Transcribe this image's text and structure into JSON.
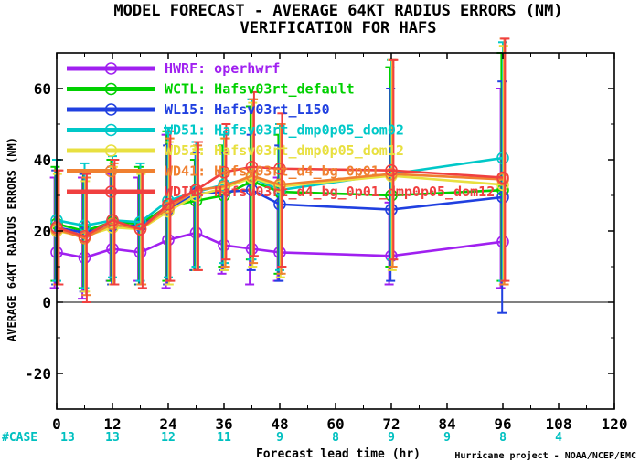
{
  "title": "MODEL FORECAST - AVERAGE 64KT RADIUS ERRORS (NM)",
  "subtitle": "VERIFICATION FOR HAFS",
  "credit": "Hurricane project - NOAA/NCEP/EMC",
  "cases_label": "#CASE",
  "chart_data": {
    "type": "line",
    "title": "MODEL FORECAST - AVERAGE 64KT RADIUS ERRORS (NM)",
    "subtitle": "VERIFICATION FOR HAFS",
    "xlabel": "Forecast lead time (hr)",
    "ylabel": "AVERAGE 64KT RADIUS ERRORS (NM)",
    "xlim": [
      0,
      120
    ],
    "ylim": [
      -30,
      70
    ],
    "xticks": [
      0,
      12,
      24,
      36,
      48,
      60,
      72,
      84,
      96,
      108,
      120
    ],
    "yticks": [
      -20,
      0,
      20,
      40,
      60
    ],
    "grid": false,
    "legend_position": "top-left",
    "x": [
      0,
      6,
      12,
      18,
      24,
      30,
      36,
      42,
      48,
      72,
      96
    ],
    "cases": [
      {
        "x": 0,
        "n": "13"
      },
      {
        "x": 12,
        "n": "13"
      },
      {
        "x": 24,
        "n": "12"
      },
      {
        "x": 36,
        "n": "11"
      },
      {
        "x": 48,
        "n": "9"
      },
      {
        "x": 60,
        "n": "8"
      },
      {
        "x": 72,
        "n": "9"
      },
      {
        "x": 84,
        "n": "9"
      },
      {
        "x": 96,
        "n": "8"
      },
      {
        "x": 108,
        "n": "4"
      }
    ],
    "series": [
      {
        "name": "HWRF: operhwrf",
        "color": "#a020f0",
        "values": [
          14,
          12.5,
          15,
          14,
          17.5,
          19.5,
          16,
          15,
          14,
          13,
          17
        ],
        "err_low": [
          4,
          1,
          6,
          6,
          4,
          9,
          8,
          5,
          6,
          5,
          4
        ],
        "err_high": [
          35,
          35,
          36,
          35,
          47,
          31,
          32,
          33,
          35,
          28,
          60
        ]
      },
      {
        "name": "WCTL: Hafsv03rt_default",
        "color": "#00d000",
        "values": [
          22,
          20,
          22.5,
          22,
          27,
          28.5,
          30,
          34,
          31,
          30,
          31.5
        ],
        "err_low": [
          6,
          4,
          6,
          5,
          6,
          9,
          10,
          12,
          8,
          10,
          6
        ],
        "err_high": [
          38,
          37,
          40,
          38,
          48,
          40,
          44,
          55,
          47,
          66,
          70
        ]
      },
      {
        "name": "WL15: Hafsv03rt_L150",
        "color": "#2040e0",
        "values": [
          21,
          19.5,
          21.5,
          21.5,
          26,
          30.5,
          31,
          31.5,
          27.5,
          26,
          29.5
        ],
        "err_low": [
          5,
          3,
          5,
          5,
          5,
          9,
          9,
          9,
          6,
          6,
          -3
        ],
        "err_high": [
          37,
          36,
          38,
          37,
          44,
          42,
          42,
          47,
          44,
          60,
          62
        ]
      },
      {
        "name": "WD51: Hafsv03rt_dmp0p05_dom02",
        "color": "#00c8c8",
        "values": [
          23,
          21.5,
          23,
          22.5,
          28.5,
          31,
          33,
          35,
          31.5,
          36,
          40.5
        ],
        "err_low": [
          6,
          4,
          7,
          6,
          7,
          10,
          11,
          12,
          9,
          12,
          6
        ],
        "err_high": [
          40,
          39,
          41,
          39,
          49,
          45,
          47,
          57,
          50,
          68,
          73
        ]
      },
      {
        "name": "WD52: Hafsv03rt_dmp0p05_dom12",
        "color": "#e8e040",
        "values": [
          20,
          18.5,
          21,
          20.5,
          25.5,
          30,
          32,
          35,
          32.5,
          35.5,
          33
        ],
        "err_low": [
          5,
          3,
          5,
          5,
          5,
          9,
          9,
          10,
          7,
          9,
          5
        ],
        "err_high": [
          36,
          34,
          38,
          36,
          45,
          43,
          46,
          56,
          49,
          68,
          72
        ]
      },
      {
        "name": "WD41: Hafsv03rt_d4_bg_0p01",
        "color": "#f08030",
        "values": [
          20.5,
          18,
          22,
          20.5,
          26.5,
          31.5,
          32.5,
          35.5,
          33,
          36,
          34.5
        ],
        "err_low": [
          5,
          2,
          5,
          5,
          6,
          9,
          10,
          11,
          8,
          10,
          5
        ],
        "err_high": [
          37,
          35,
          39,
          37,
          46,
          44,
          46,
          57,
          50,
          68,
          74
        ]
      },
      {
        "name": "WDIV: Hafsv03rt_d4_bg_0p01_dmp0p05_dom12",
        "color": "#f04040",
        "values": [
          21,
          18.5,
          23,
          20.5,
          27.5,
          31.5,
          36.5,
          38,
          37.5,
          37,
          35
        ],
        "err_low": [
          5,
          0,
          5,
          4,
          6,
          9,
          12,
          13,
          10,
          12,
          6
        ],
        "err_high": [
          37,
          36,
          40,
          37,
          48,
          45,
          50,
          59,
          53,
          68,
          74
        ]
      }
    ]
  }
}
